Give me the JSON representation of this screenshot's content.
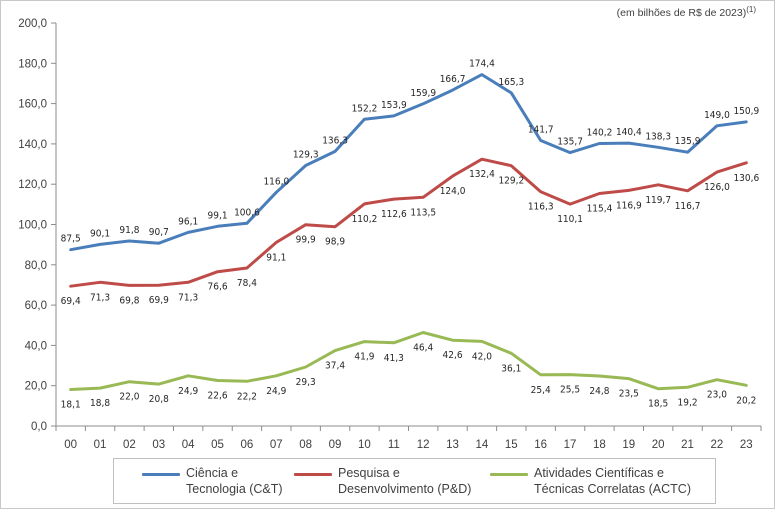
{
  "chart_data": {
    "type": "line",
    "title": "",
    "units_note": "(em bilhões de R$ de 2023)",
    "units_note_sup": "(1)",
    "xlabel": "",
    "ylabel": "",
    "ylim": [
      0,
      200
    ],
    "y_ticks": [
      "0,0",
      "20,0",
      "40,0",
      "60,0",
      "80,0",
      "100,0",
      "120,0",
      "140,0",
      "160,0",
      "180,0",
      "200,0"
    ],
    "categories": [
      "00",
      "01",
      "02",
      "03",
      "04",
      "05",
      "06",
      "07",
      "08",
      "09",
      "10",
      "11",
      "12",
      "13",
      "14",
      "15",
      "16",
      "17",
      "18",
      "19",
      "20",
      "21",
      "22",
      "23"
    ],
    "series": [
      {
        "name_line1": "Ciência e",
        "name_line2": "Tecnologia (C&T)",
        "color": "#4a7ebb",
        "label_pos": "above",
        "values": [
          87.5,
          90.1,
          91.8,
          90.7,
          96.1,
          99.1,
          100.6,
          116.0,
          129.3,
          136.3,
          152.2,
          153.9,
          159.9,
          166.7,
          174.4,
          165.3,
          141.7,
          135.7,
          140.2,
          140.4,
          138.3,
          135.9,
          149.0,
          150.9
        ],
        "labels": [
          "87,5",
          "90,1",
          "91,8",
          "90,7",
          "96,1",
          "99,1",
          "100,6",
          "116,0",
          "129,3",
          "136,3",
          "152,2",
          "153,9",
          "159,9",
          "166,7",
          "174,4",
          "165,3",
          "141,7",
          "135,7",
          "140,2",
          "140,4",
          "138,3",
          "135,9",
          "149,0",
          "150,9"
        ]
      },
      {
        "name_line1": "Pesquisa e",
        "name_line2": "Desenvolvimento (P&D)",
        "color": "#be4b48",
        "label_pos": "below",
        "values": [
          69.4,
          71.3,
          69.8,
          69.9,
          71.3,
          76.6,
          78.4,
          91.1,
          99.9,
          98.9,
          110.2,
          112.6,
          113.5,
          124.0,
          132.4,
          129.2,
          116.3,
          110.1,
          115.4,
          116.9,
          119.7,
          116.7,
          126.0,
          130.6
        ],
        "labels": [
          "69,4",
          "71,3",
          "69,8",
          "69,9",
          "71,3",
          "76,6",
          "78,4",
          "91,1",
          "99,9",
          "98,9",
          "110,2",
          "112,6",
          "113,5",
          "124,0",
          "132,4",
          "129,2",
          "116,3",
          "110,1",
          "115,4",
          "116,9",
          "119,7",
          "116,7",
          "126,0",
          "130,6"
        ]
      },
      {
        "name_line1": "Atividades Científicas e",
        "name_line2": "Técnicas Correlatas (ACTC)",
        "color": "#98b954",
        "label_pos": "below",
        "values": [
          18.1,
          18.8,
          22.0,
          20.8,
          24.9,
          22.6,
          22.2,
          24.9,
          29.3,
          37.4,
          41.9,
          41.3,
          46.4,
          42.6,
          42.0,
          36.1,
          25.4,
          25.5,
          24.8,
          23.5,
          18.5,
          19.2,
          23.0,
          20.2
        ],
        "labels": [
          "18,1",
          "18,8",
          "22,0",
          "20,8",
          "24,9",
          "22,6",
          "22,2",
          "24,9",
          "29,3",
          "37,4",
          "41,9",
          "41,3",
          "46,4",
          "42,6",
          "42,0",
          "36,1",
          "25,4",
          "25,5",
          "24,8",
          "23,5",
          "18,5",
          "19,2",
          "23,0",
          "20,2"
        ]
      }
    ],
    "grid": false,
    "legend_position": "bottom"
  }
}
